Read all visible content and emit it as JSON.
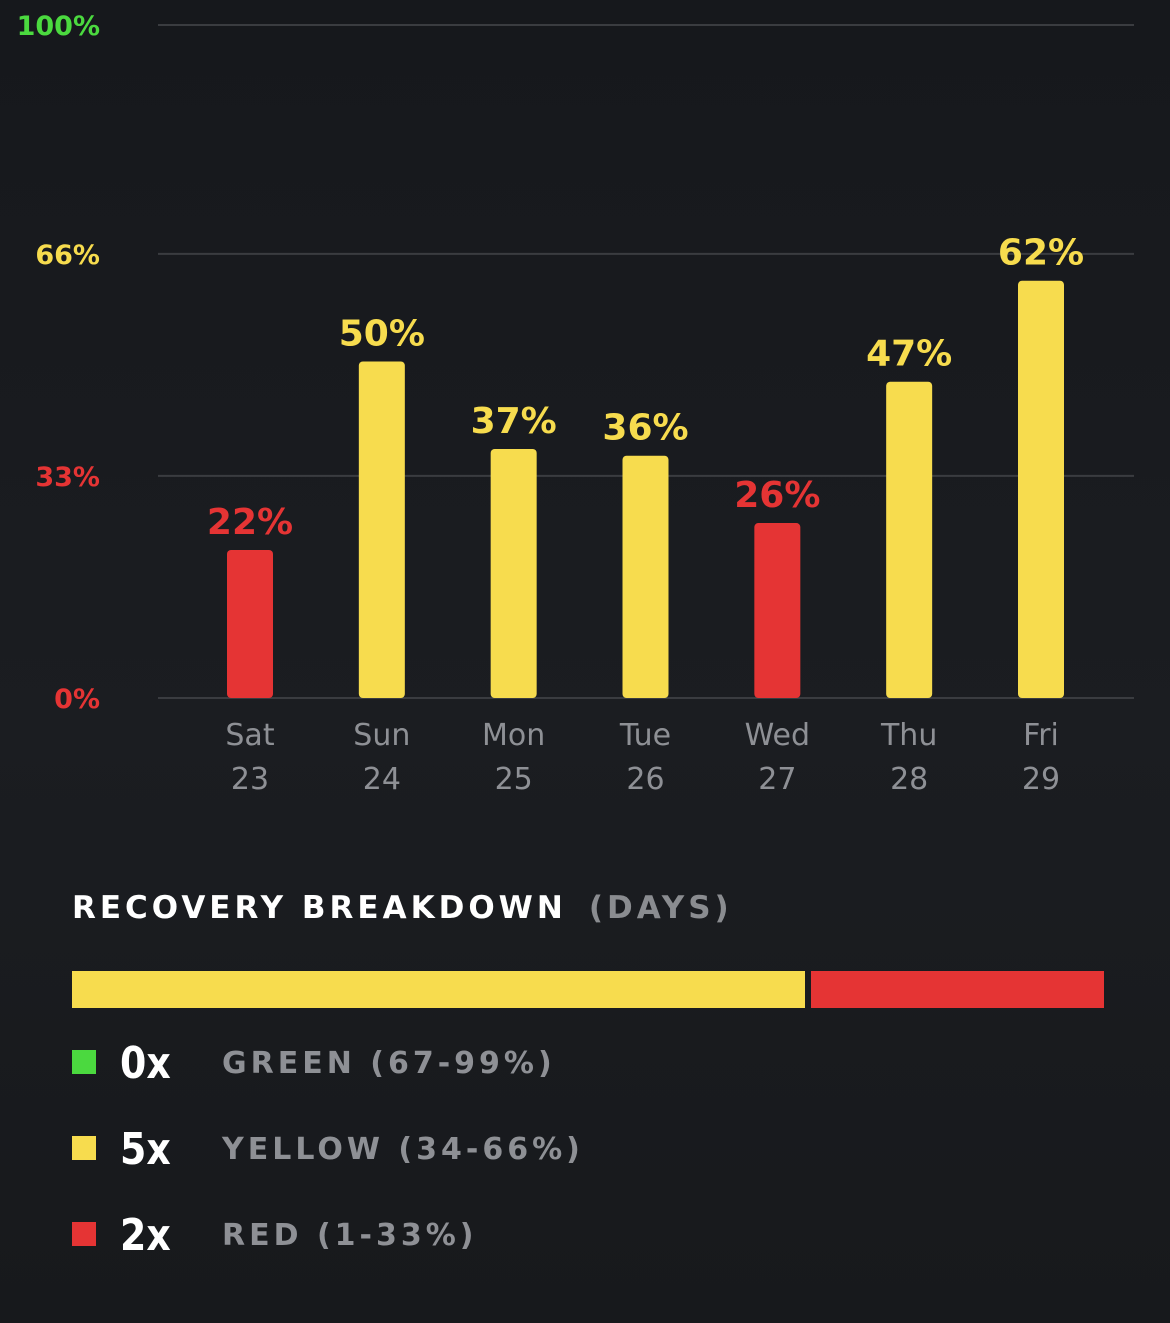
{
  "colors": {
    "green": "#4bd93f",
    "yellow": "#f7dc4e",
    "red": "#e53434",
    "grid": "#3a3c40",
    "tick": "#8e9095"
  },
  "chart_data": {
    "type": "bar",
    "title": "",
    "ylim": [
      0,
      100
    ],
    "y_ticks": [
      {
        "value": 100,
        "label": "100%",
        "color": "green"
      },
      {
        "value": 66,
        "label": "66%",
        "color": "yellow"
      },
      {
        "value": 33,
        "label": "33%",
        "color": "red"
      },
      {
        "value": 0,
        "label": "0%",
        "color": "red"
      }
    ],
    "categories": [
      {
        "day": "Sat",
        "date": "23"
      },
      {
        "day": "Sun",
        "date": "24"
      },
      {
        "day": "Mon",
        "date": "25"
      },
      {
        "day": "Tue",
        "date": "26"
      },
      {
        "day": "Wed",
        "date": "27"
      },
      {
        "day": "Thu",
        "date": "28"
      },
      {
        "day": "Fri",
        "date": "29"
      }
    ],
    "values": [
      22,
      50,
      37,
      36,
      26,
      47,
      62
    ],
    "value_labels": [
      "22%",
      "50%",
      "37%",
      "36%",
      "26%",
      "47%",
      "62%"
    ],
    "bar_colors": [
      "red",
      "yellow",
      "yellow",
      "yellow",
      "red",
      "yellow",
      "yellow"
    ]
  },
  "breakdown": {
    "title": "RECOVERY BREAKDOWN",
    "subtitle": "(DAYS)",
    "segments": [
      {
        "color": "yellow",
        "days": 5
      },
      {
        "color": "red",
        "days": 2
      }
    ],
    "legend": [
      {
        "color": "green",
        "count": "0x",
        "label": "GREEN (67-99%)"
      },
      {
        "color": "yellow",
        "count": "5x",
        "label": "YELLOW (34-66%)"
      },
      {
        "color": "red",
        "count": "2x",
        "label": "RED (1-33%)"
      }
    ]
  }
}
